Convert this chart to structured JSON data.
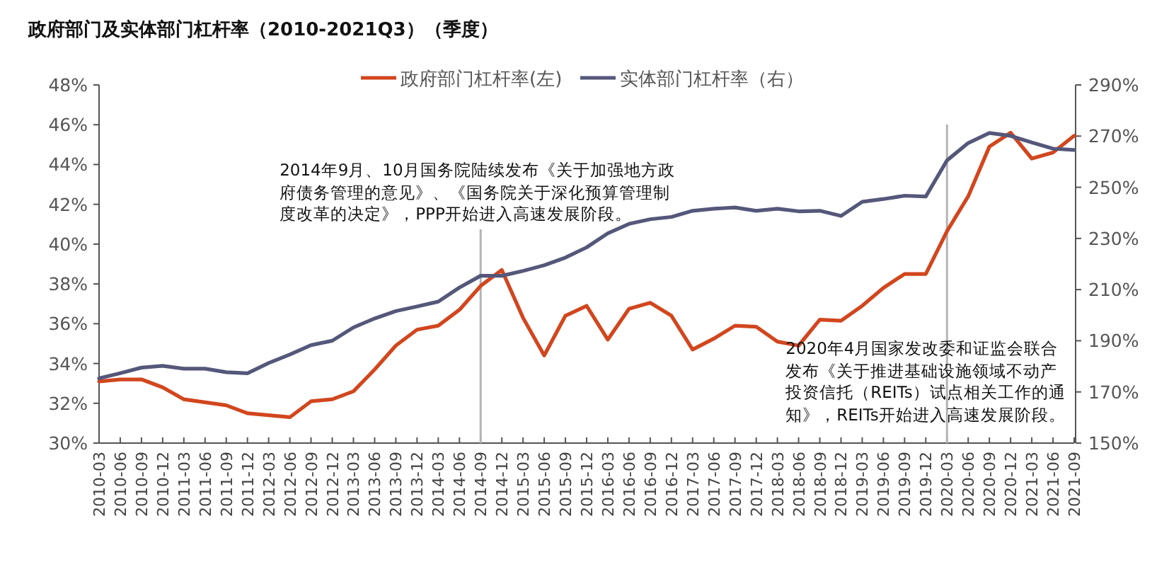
{
  "chart_data": {
    "type": "line",
    "title": "政府部门及实体部门杠杆率（2010-2021Q3）（季度）",
    "categories": [
      "2010-03",
      "2010-06",
      "2010-09",
      "2010-12",
      "2011-03",
      "2011-06",
      "2011-09",
      "2011-12",
      "2012-03",
      "2012-06",
      "2012-09",
      "2012-12",
      "2013-03",
      "2013-06",
      "2013-09",
      "2013-12",
      "2014-03",
      "2014-06",
      "2014-09",
      "2014-12",
      "2015-03",
      "2015-06",
      "2015-09",
      "2015-12",
      "2016-03",
      "2016-06",
      "2016-09",
      "2016-12",
      "2017-03",
      "2017-06",
      "2017-09",
      "2017-12",
      "2018-03",
      "2018-06",
      "2018-09",
      "2018-12",
      "2019-03",
      "2019-06",
      "2019-09",
      "2019-12",
      "2020-03",
      "2020-06",
      "2020-09",
      "2020-12",
      "2021-03",
      "2021-06",
      "2021-09"
    ],
    "series": [
      {
        "name": "政府部门杠杆率(左)",
        "color": "#d2461e",
        "values": [
          33.1,
          33.2,
          33.2,
          32.8,
          32.2,
          32.05,
          31.9,
          31.5,
          31.4,
          31.3,
          32.1,
          32.2,
          32.6,
          33.7,
          34.9,
          35.7,
          35.9,
          36.7,
          37.9,
          38.7,
          36.3,
          34.4,
          36.4,
          36.9,
          35.2,
          36.75,
          37.05,
          36.4,
          34.7,
          35.25,
          35.9,
          35.85,
          35.1,
          34.9,
          36.2,
          36.15,
          36.9,
          37.8,
          38.5,
          38.5,
          40.65,
          42.4,
          44.9,
          45.6,
          44.3,
          44.6,
          45.45
        ]
      },
      {
        "name": "实体部门杠杆率（右）",
        "color": "#55577a",
        "axis": "y2",
        "values": [
          175.3,
          177.3,
          179.5,
          180.2,
          179.1,
          179.1,
          177.7,
          177.3,
          181.3,
          184.6,
          188.3,
          190.0,
          195.2,
          198.7,
          201.6,
          203.4,
          205.3,
          210.8,
          215.4,
          215.4,
          217.3,
          219.5,
          222.5,
          226.5,
          232.0,
          235.7,
          237.5,
          238.4,
          240.8,
          241.6,
          242.1,
          240.8,
          241.6,
          240.6,
          240.8,
          238.8,
          244.3,
          245.4,
          246.7,
          246.4,
          260.5,
          267.3,
          271.2,
          270.1,
          267.5,
          265.1,
          264.6
        ]
      }
    ],
    "ylim": [
      30,
      48
    ],
    "yticks": [
      {
        "value": 30,
        "label": "30%"
      },
      {
        "value": 32,
        "label": "32%"
      },
      {
        "value": 34,
        "label": "34%"
      },
      {
        "value": 36,
        "label": "36%"
      },
      {
        "value": 38,
        "label": "38%"
      },
      {
        "value": 40,
        "label": "40%"
      },
      {
        "value": 42,
        "label": "42%"
      },
      {
        "value": 44,
        "label": "44%"
      },
      {
        "value": 46,
        "label": "46%"
      },
      {
        "value": 48,
        "label": "48%"
      }
    ],
    "y2lim": [
      150,
      290
    ],
    "y2ticks": [
      {
        "value": 150,
        "label": "150%"
      },
      {
        "value": 170,
        "label": "170%"
      },
      {
        "value": 190,
        "label": "190%"
      },
      {
        "value": 210,
        "label": "210%"
      },
      {
        "value": 230,
        "label": "230%"
      },
      {
        "value": 250,
        "label": "250%"
      },
      {
        "value": 270,
        "label": "270%"
      },
      {
        "value": 290,
        "label": "290%"
      }
    ],
    "ref_lines": [
      {
        "axis": "x",
        "value": "2014-09",
        "color": "#b4b4b4",
        "label": "2014年9月、10月国务院陆续发布《关于加强地方政府债务管理的意见》、《国务院关于深化预算管理制度改革的决定》，PPP开始进入高速发展阶段。"
      },
      {
        "axis": "x",
        "value": "2020-03",
        "color": "#b4b4b4",
        "label": "2020年4月国家发改委和证监会联合发布《关于推进基础设施领域不动产投资信托（REITs）试点相关工作的通知》，REITs开始进入高速发展阶段。"
      }
    ],
    "legend": "top",
    "grid": false,
    "marker": "none",
    "line_style": "solid"
  }
}
